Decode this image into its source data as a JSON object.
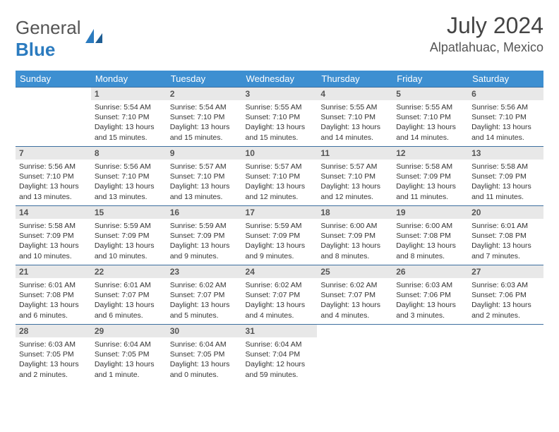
{
  "logo": {
    "word1": "General",
    "word2": "Blue"
  },
  "title": "July 2024",
  "location": "Alpatlahuac, Mexico",
  "colors": {
    "header_bg": "#3d8fd1",
    "header_text": "#ffffff",
    "daynum_bg": "#e8e8e8",
    "row_border": "#3d6f9f",
    "logo_accent": "#2b7bbf",
    "body_text": "#333333"
  },
  "weekdays": [
    "Sunday",
    "Monday",
    "Tuesday",
    "Wednesday",
    "Thursday",
    "Friday",
    "Saturday"
  ],
  "layout": {
    "first_weekday_index": 1,
    "days_in_month": 31,
    "rows": 5,
    "cols": 7
  },
  "days": {
    "1": {
      "sunrise": "Sunrise: 5:54 AM",
      "sunset": "Sunset: 7:10 PM",
      "daylight": "Daylight: 13 hours and 15 minutes."
    },
    "2": {
      "sunrise": "Sunrise: 5:54 AM",
      "sunset": "Sunset: 7:10 PM",
      "daylight": "Daylight: 13 hours and 15 minutes."
    },
    "3": {
      "sunrise": "Sunrise: 5:55 AM",
      "sunset": "Sunset: 7:10 PM",
      "daylight": "Daylight: 13 hours and 15 minutes."
    },
    "4": {
      "sunrise": "Sunrise: 5:55 AM",
      "sunset": "Sunset: 7:10 PM",
      "daylight": "Daylight: 13 hours and 14 minutes."
    },
    "5": {
      "sunrise": "Sunrise: 5:55 AM",
      "sunset": "Sunset: 7:10 PM",
      "daylight": "Daylight: 13 hours and 14 minutes."
    },
    "6": {
      "sunrise": "Sunrise: 5:56 AM",
      "sunset": "Sunset: 7:10 PM",
      "daylight": "Daylight: 13 hours and 14 minutes."
    },
    "7": {
      "sunrise": "Sunrise: 5:56 AM",
      "sunset": "Sunset: 7:10 PM",
      "daylight": "Daylight: 13 hours and 13 minutes."
    },
    "8": {
      "sunrise": "Sunrise: 5:56 AM",
      "sunset": "Sunset: 7:10 PM",
      "daylight": "Daylight: 13 hours and 13 minutes."
    },
    "9": {
      "sunrise": "Sunrise: 5:57 AM",
      "sunset": "Sunset: 7:10 PM",
      "daylight": "Daylight: 13 hours and 13 minutes."
    },
    "10": {
      "sunrise": "Sunrise: 5:57 AM",
      "sunset": "Sunset: 7:10 PM",
      "daylight": "Daylight: 13 hours and 12 minutes."
    },
    "11": {
      "sunrise": "Sunrise: 5:57 AM",
      "sunset": "Sunset: 7:10 PM",
      "daylight": "Daylight: 13 hours and 12 minutes."
    },
    "12": {
      "sunrise": "Sunrise: 5:58 AM",
      "sunset": "Sunset: 7:09 PM",
      "daylight": "Daylight: 13 hours and 11 minutes."
    },
    "13": {
      "sunrise": "Sunrise: 5:58 AM",
      "sunset": "Sunset: 7:09 PM",
      "daylight": "Daylight: 13 hours and 11 minutes."
    },
    "14": {
      "sunrise": "Sunrise: 5:58 AM",
      "sunset": "Sunset: 7:09 PM",
      "daylight": "Daylight: 13 hours and 10 minutes."
    },
    "15": {
      "sunrise": "Sunrise: 5:59 AM",
      "sunset": "Sunset: 7:09 PM",
      "daylight": "Daylight: 13 hours and 10 minutes."
    },
    "16": {
      "sunrise": "Sunrise: 5:59 AM",
      "sunset": "Sunset: 7:09 PM",
      "daylight": "Daylight: 13 hours and 9 minutes."
    },
    "17": {
      "sunrise": "Sunrise: 5:59 AM",
      "sunset": "Sunset: 7:09 PM",
      "daylight": "Daylight: 13 hours and 9 minutes."
    },
    "18": {
      "sunrise": "Sunrise: 6:00 AM",
      "sunset": "Sunset: 7:09 PM",
      "daylight": "Daylight: 13 hours and 8 minutes."
    },
    "19": {
      "sunrise": "Sunrise: 6:00 AM",
      "sunset": "Sunset: 7:08 PM",
      "daylight": "Daylight: 13 hours and 8 minutes."
    },
    "20": {
      "sunrise": "Sunrise: 6:01 AM",
      "sunset": "Sunset: 7:08 PM",
      "daylight": "Daylight: 13 hours and 7 minutes."
    },
    "21": {
      "sunrise": "Sunrise: 6:01 AM",
      "sunset": "Sunset: 7:08 PM",
      "daylight": "Daylight: 13 hours and 6 minutes."
    },
    "22": {
      "sunrise": "Sunrise: 6:01 AM",
      "sunset": "Sunset: 7:07 PM",
      "daylight": "Daylight: 13 hours and 6 minutes."
    },
    "23": {
      "sunrise": "Sunrise: 6:02 AM",
      "sunset": "Sunset: 7:07 PM",
      "daylight": "Daylight: 13 hours and 5 minutes."
    },
    "24": {
      "sunrise": "Sunrise: 6:02 AM",
      "sunset": "Sunset: 7:07 PM",
      "daylight": "Daylight: 13 hours and 4 minutes."
    },
    "25": {
      "sunrise": "Sunrise: 6:02 AM",
      "sunset": "Sunset: 7:07 PM",
      "daylight": "Daylight: 13 hours and 4 minutes."
    },
    "26": {
      "sunrise": "Sunrise: 6:03 AM",
      "sunset": "Sunset: 7:06 PM",
      "daylight": "Daylight: 13 hours and 3 minutes."
    },
    "27": {
      "sunrise": "Sunrise: 6:03 AM",
      "sunset": "Sunset: 7:06 PM",
      "daylight": "Daylight: 13 hours and 2 minutes."
    },
    "28": {
      "sunrise": "Sunrise: 6:03 AM",
      "sunset": "Sunset: 7:05 PM",
      "daylight": "Daylight: 13 hours and 2 minutes."
    },
    "29": {
      "sunrise": "Sunrise: 6:04 AM",
      "sunset": "Sunset: 7:05 PM",
      "daylight": "Daylight: 13 hours and 1 minute."
    },
    "30": {
      "sunrise": "Sunrise: 6:04 AM",
      "sunset": "Sunset: 7:05 PM",
      "daylight": "Daylight: 13 hours and 0 minutes."
    },
    "31": {
      "sunrise": "Sunrise: 6:04 AM",
      "sunset": "Sunset: 7:04 PM",
      "daylight": "Daylight: 12 hours and 59 minutes."
    }
  }
}
